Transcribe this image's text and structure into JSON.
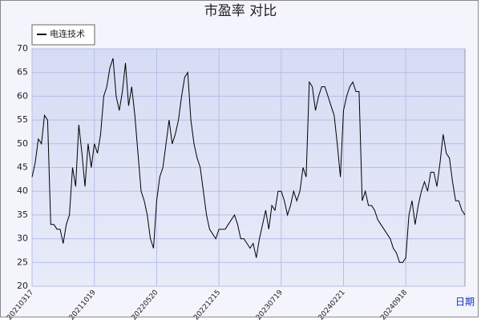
{
  "chart_data": {
    "type": "line",
    "title": "市盈率  对比",
    "x_label": "日期",
    "categories": [
      "20210317",
      null,
      null,
      null,
      null,
      null,
      null,
      null,
      null,
      null,
      null,
      null,
      null,
      null,
      null,
      null,
      null,
      null,
      null,
      null,
      "20211019",
      null,
      null,
      null,
      null,
      null,
      null,
      null,
      null,
      null,
      null,
      null,
      null,
      null,
      null,
      null,
      null,
      null,
      null,
      null,
      "20220520",
      null,
      null,
      null,
      null,
      null,
      null,
      null,
      null,
      null,
      null,
      null,
      null,
      null,
      null,
      null,
      null,
      null,
      null,
      null,
      "20221215",
      null,
      null,
      null,
      null,
      null,
      null,
      null,
      null,
      null,
      null,
      null,
      null,
      null,
      null,
      null,
      null,
      null,
      null,
      null,
      "20230719",
      null,
      null,
      null,
      null,
      null,
      null,
      null,
      null,
      null,
      null,
      null,
      null,
      null,
      null,
      null,
      null,
      null,
      null,
      null,
      "20240221",
      null,
      null,
      null,
      null,
      null,
      null,
      null,
      null,
      null,
      null,
      null,
      null,
      null,
      null,
      null,
      null,
      null,
      null,
      null,
      "20240918",
      null,
      null,
      null,
      null,
      null,
      null,
      null,
      null,
      null,
      null,
      null,
      null,
      null,
      null,
      null,
      null,
      null,
      null,
      null
    ],
    "series": [
      {
        "name": "电连技术",
        "color": "#000000",
        "values": [
          43,
          46,
          51,
          50,
          56,
          55,
          33,
          33,
          32,
          32,
          29,
          33,
          35,
          45,
          41,
          54,
          48,
          41,
          50,
          45,
          50,
          48,
          52,
          60,
          62,
          66,
          68,
          60,
          57,
          61,
          67,
          58,
          62,
          56,
          48,
          40,
          38,
          35,
          30,
          28,
          38,
          43,
          45,
          50,
          55,
          50,
          52,
          55,
          60,
          64,
          65,
          55,
          50,
          47,
          45,
          40,
          35,
          32,
          31,
          30,
          32,
          32,
          32,
          33,
          34,
          35,
          33,
          30,
          30,
          29,
          28,
          29,
          26,
          30,
          33,
          36,
          32,
          37,
          36,
          40,
          40,
          38,
          35,
          37,
          40,
          38,
          40,
          45,
          43,
          63,
          62,
          57,
          60,
          62,
          62,
          60,
          58,
          56,
          50,
          43,
          57,
          60,
          62,
          63,
          61,
          61,
          38,
          40,
          37,
          37,
          36,
          34,
          33,
          32,
          31,
          30,
          28,
          27,
          25,
          25,
          26,
          35,
          38,
          33,
          37,
          40,
          42,
          40,
          44,
          44,
          41,
          46,
          52,
          48,
          47,
          42,
          38,
          38,
          36,
          35
        ]
      }
    ],
    "ylim": [
      20,
      70
    ],
    "yticks": [
      20,
      25,
      30,
      35,
      40,
      45,
      50,
      55,
      60,
      65,
      70
    ],
    "grid": true,
    "legend": "top-left"
  }
}
